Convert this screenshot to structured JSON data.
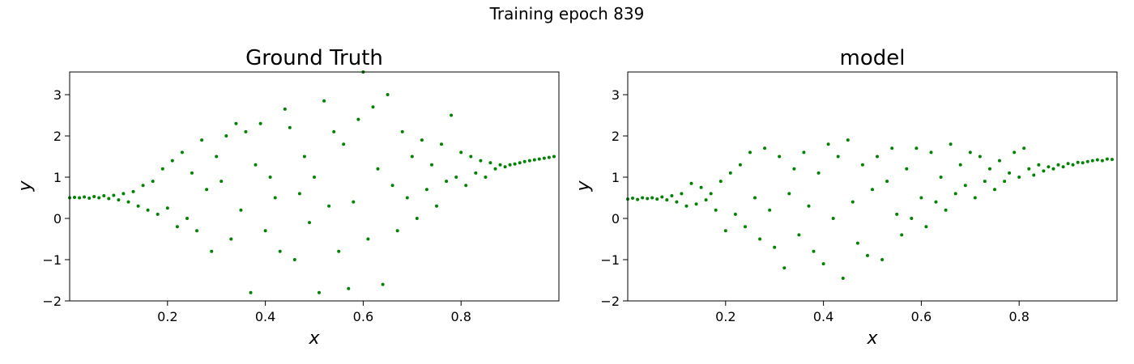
{
  "figure": {
    "suptitle": "Training epoch 839",
    "marker_color": "#008000"
  },
  "chart_data": [
    {
      "type": "scatter",
      "title": "Ground Truth",
      "xlabel": "x",
      "ylabel": "y",
      "xlim": [
        0.0,
        1.0
      ],
      "ylim": [
        -2.0,
        3.55
      ],
      "xticks": [
        0.2,
        0.4,
        0.6,
        0.8
      ],
      "xtick_labels": [
        "0.2",
        "0.4",
        "0.6",
        "0.8"
      ],
      "yticks": [
        -2,
        -1,
        0,
        1,
        2,
        3
      ],
      "ytick_labels": [
        "−2",
        "−1",
        "0",
        "1",
        "2",
        "3"
      ],
      "grid": false,
      "legend": "none",
      "color": "#008000",
      "points": [
        [
          0.0,
          0.5
        ],
        [
          0.01,
          0.51
        ],
        [
          0.02,
          0.5
        ],
        [
          0.03,
          0.52
        ],
        [
          0.04,
          0.49
        ],
        [
          0.05,
          0.53
        ],
        [
          0.06,
          0.5
        ],
        [
          0.07,
          0.55
        ],
        [
          0.08,
          0.48
        ],
        [
          0.09,
          0.56
        ],
        [
          0.1,
          0.45
        ],
        [
          0.11,
          0.6
        ],
        [
          0.12,
          0.4
        ],
        [
          0.13,
          0.65
        ],
        [
          0.14,
          0.3
        ],
        [
          0.15,
          0.8
        ],
        [
          0.16,
          0.2
        ],
        [
          0.17,
          0.9
        ],
        [
          0.18,
          0.1
        ],
        [
          0.19,
          1.2
        ],
        [
          0.2,
          0.25
        ],
        [
          0.21,
          1.4
        ],
        [
          0.22,
          -0.2
        ],
        [
          0.23,
          1.6
        ],
        [
          0.24,
          0.0
        ],
        [
          0.25,
          1.1
        ],
        [
          0.26,
          -0.3
        ],
        [
          0.27,
          1.9
        ],
        [
          0.28,
          0.7
        ],
        [
          0.29,
          -0.8
        ],
        [
          0.3,
          1.5
        ],
        [
          0.31,
          0.9
        ],
        [
          0.32,
          2.0
        ],
        [
          0.33,
          -0.5
        ],
        [
          0.34,
          2.3
        ],
        [
          0.35,
          0.2
        ],
        [
          0.36,
          2.1
        ],
        [
          0.37,
          -1.8
        ],
        [
          0.38,
          1.3
        ],
        [
          0.39,
          2.3
        ],
        [
          0.4,
          -0.3
        ],
        [
          0.41,
          1.0
        ],
        [
          0.42,
          0.5
        ],
        [
          0.43,
          -0.8
        ],
        [
          0.44,
          2.65
        ],
        [
          0.45,
          2.2
        ],
        [
          0.46,
          -1.0
        ],
        [
          0.47,
          0.6
        ],
        [
          0.48,
          1.5
        ],
        [
          0.49,
          -0.1
        ],
        [
          0.5,
          1.0
        ],
        [
          0.51,
          -1.8
        ],
        [
          0.52,
          2.85
        ],
        [
          0.53,
          0.3
        ],
        [
          0.54,
          2.1
        ],
        [
          0.55,
          -0.8
        ],
        [
          0.56,
          1.8
        ],
        [
          0.57,
          -1.7
        ],
        [
          0.58,
          0.4
        ],
        [
          0.59,
          2.4
        ],
        [
          0.6,
          3.55
        ],
        [
          0.61,
          -0.5
        ],
        [
          0.62,
          2.7
        ],
        [
          0.63,
          1.2
        ],
        [
          0.64,
          -1.6
        ],
        [
          0.65,
          3.0
        ],
        [
          0.66,
          0.8
        ],
        [
          0.67,
          -0.3
        ],
        [
          0.68,
          2.1
        ],
        [
          0.69,
          0.5
        ],
        [
          0.7,
          1.5
        ],
        [
          0.71,
          0.0
        ],
        [
          0.72,
          1.9
        ],
        [
          0.73,
          0.7
        ],
        [
          0.74,
          1.3
        ],
        [
          0.75,
          0.3
        ],
        [
          0.76,
          1.8
        ],
        [
          0.77,
          0.9
        ],
        [
          0.78,
          2.5
        ],
        [
          0.79,
          1.0
        ],
        [
          0.8,
          1.6
        ],
        [
          0.81,
          0.8
        ],
        [
          0.82,
          1.5
        ],
        [
          0.83,
          1.1
        ],
        [
          0.84,
          1.4
        ],
        [
          0.85,
          1.0
        ],
        [
          0.86,
          1.35
        ],
        [
          0.87,
          1.2
        ],
        [
          0.88,
          1.3
        ],
        [
          0.89,
          1.25
        ],
        [
          0.9,
          1.3
        ],
        [
          0.91,
          1.32
        ],
        [
          0.92,
          1.35
        ],
        [
          0.93,
          1.38
        ],
        [
          0.94,
          1.4
        ],
        [
          0.95,
          1.42
        ],
        [
          0.96,
          1.44
        ],
        [
          0.97,
          1.46
        ],
        [
          0.98,
          1.48
        ],
        [
          0.99,
          1.5
        ]
      ]
    },
    {
      "type": "scatter",
      "title": "model",
      "xlabel": "x",
      "ylabel": "y",
      "xlim": [
        0.0,
        1.0
      ],
      "ylim": [
        -2.0,
        3.55
      ],
      "xticks": [
        0.2,
        0.4,
        0.6,
        0.8
      ],
      "xtick_labels": [
        "0.2",
        "0.4",
        "0.6",
        "0.8"
      ],
      "yticks": [
        -2,
        -1,
        0,
        1,
        2,
        3
      ],
      "ytick_labels": [
        "−2",
        "−1",
        "0",
        "1",
        "2",
        "3"
      ],
      "grid": false,
      "legend": "none",
      "color": "#008000",
      "points": [
        [
          0.0,
          0.47
        ],
        [
          0.01,
          0.49
        ],
        [
          0.02,
          0.46
        ],
        [
          0.03,
          0.5
        ],
        [
          0.04,
          0.48
        ],
        [
          0.05,
          0.5
        ],
        [
          0.06,
          0.47
        ],
        [
          0.07,
          0.52
        ],
        [
          0.08,
          0.45
        ],
        [
          0.09,
          0.55
        ],
        [
          0.1,
          0.4
        ],
        [
          0.11,
          0.6
        ],
        [
          0.12,
          0.3
        ],
        [
          0.13,
          0.85
        ],
        [
          0.14,
          0.35
        ],
        [
          0.15,
          0.75
        ],
        [
          0.16,
          0.45
        ],
        [
          0.17,
          0.6
        ],
        [
          0.18,
          0.2
        ],
        [
          0.19,
          0.9
        ],
        [
          0.2,
          -0.3
        ],
        [
          0.21,
          1.1
        ],
        [
          0.22,
          0.1
        ],
        [
          0.23,
          1.3
        ],
        [
          0.24,
          -0.2
        ],
        [
          0.25,
          1.6
        ],
        [
          0.26,
          0.5
        ],
        [
          0.27,
          -0.5
        ],
        [
          0.28,
          1.7
        ],
        [
          0.29,
          0.2
        ],
        [
          0.3,
          -0.7
        ],
        [
          0.31,
          1.5
        ],
        [
          0.32,
          -1.2
        ],
        [
          0.33,
          0.6
        ],
        [
          0.34,
          1.2
        ],
        [
          0.35,
          -0.4
        ],
        [
          0.36,
          1.6
        ],
        [
          0.37,
          0.3
        ],
        [
          0.38,
          -0.8
        ],
        [
          0.39,
          1.1
        ],
        [
          0.4,
          -1.1
        ],
        [
          0.41,
          1.8
        ],
        [
          0.42,
          0.0
        ],
        [
          0.43,
          1.5
        ],
        [
          0.44,
          -1.45
        ],
        [
          0.45,
          1.9
        ],
        [
          0.46,
          0.4
        ],
        [
          0.47,
          -0.6
        ],
        [
          0.48,
          1.3
        ],
        [
          0.49,
          -0.9
        ],
        [
          0.5,
          0.7
        ],
        [
          0.51,
          1.5
        ],
        [
          0.52,
          -1.0
        ],
        [
          0.53,
          0.9
        ],
        [
          0.54,
          1.7
        ],
        [
          0.55,
          0.1
        ],
        [
          0.56,
          -0.4
        ],
        [
          0.57,
          1.2
        ],
        [
          0.58,
          0.0
        ],
        [
          0.59,
          1.7
        ],
        [
          0.6,
          0.5
        ],
        [
          0.61,
          -0.2
        ],
        [
          0.62,
          1.6
        ],
        [
          0.63,
          0.4
        ],
        [
          0.64,
          1.0
        ],
        [
          0.65,
          0.2
        ],
        [
          0.66,
          1.8
        ],
        [
          0.67,
          0.6
        ],
        [
          0.68,
          1.3
        ],
        [
          0.69,
          0.8
        ],
        [
          0.7,
          1.6
        ],
        [
          0.71,
          0.5
        ],
        [
          0.72,
          1.5
        ],
        [
          0.73,
          0.9
        ],
        [
          0.74,
          1.2
        ],
        [
          0.75,
          0.7
        ],
        [
          0.76,
          1.4
        ],
        [
          0.77,
          0.9
        ],
        [
          0.78,
          1.1
        ],
        [
          0.79,
          1.6
        ],
        [
          0.8,
          1.0
        ],
        [
          0.81,
          1.7
        ],
        [
          0.82,
          1.2
        ],
        [
          0.83,
          1.05
        ],
        [
          0.84,
          1.3
        ],
        [
          0.85,
          1.15
        ],
        [
          0.86,
          1.25
        ],
        [
          0.87,
          1.2
        ],
        [
          0.88,
          1.3
        ],
        [
          0.89,
          1.25
        ],
        [
          0.9,
          1.33
        ],
        [
          0.91,
          1.3
        ],
        [
          0.92,
          1.36
        ],
        [
          0.93,
          1.35
        ],
        [
          0.94,
          1.38
        ],
        [
          0.95,
          1.4
        ],
        [
          0.96,
          1.42
        ],
        [
          0.97,
          1.4
        ],
        [
          0.98,
          1.44
        ],
        [
          0.99,
          1.43
        ]
      ]
    }
  ]
}
